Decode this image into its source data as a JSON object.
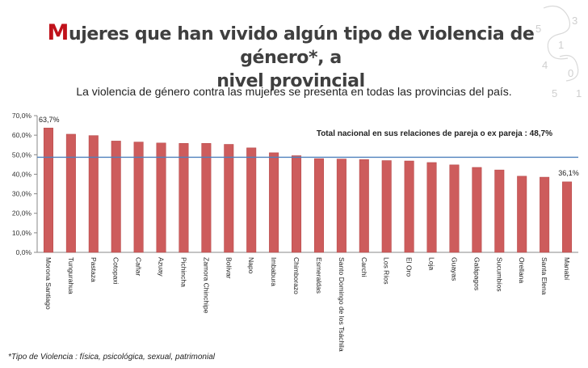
{
  "header": {
    "title_first_letter": "M",
    "title_line1_rest": "ujeres que han vivido algún tipo de violencia de género*, a",
    "title_line2": "nivel provincial",
    "subtitle": "La violencia de género contra las mujeres se presenta en todas las provincias del país."
  },
  "footnote": "*Tipo de Violencia :  física, psicológica, sexual, patrimonial",
  "colors": {
    "bar": "#cd5c5c",
    "bar_stroke": "#b44444",
    "reference_line": "#4f81bd",
    "title_accent": "#c0111a"
  },
  "chart_data": {
    "type": "bar",
    "categories": [
      "Morona Santiago",
      "Tungurahua",
      "Pastaza",
      "Cotopaxi",
      "Cañar",
      "Azuay",
      "Pichincha",
      "Zamora Chinchipe",
      "Bolívar",
      "Napo",
      "Imbabura",
      "Chimborazo",
      "Esmeraldas",
      "Santo Domingo de los Tsáchilas",
      "Carchi",
      "Los Ríos",
      "El Oro",
      "Loja",
      "Guayas",
      "Galápagos",
      "Sucumbíos",
      "Orellana",
      "Santa Elena",
      "Manabí"
    ],
    "values": [
      63.7,
      60.5,
      59.8,
      57.0,
      56.5,
      56.0,
      55.8,
      55.8,
      55.3,
      53.5,
      51.0,
      49.5,
      48.0,
      47.8,
      47.5,
      47.0,
      46.8,
      46.0,
      44.8,
      43.5,
      42.2,
      39.0,
      38.5,
      36.1
    ],
    "data_labels": {
      "0": "63,7%",
      "23": "36,1%"
    },
    "yticks": [
      "0,0%",
      "10,0%",
      "20,0%",
      "30,0%",
      "40,0%",
      "50,0%",
      "60,0%",
      "70,0%"
    ],
    "ylim": [
      0,
      70
    ],
    "reference": {
      "value": 48.7,
      "label": "Total nacional en sus relaciones de pareja o ex pareja : 48,7%"
    },
    "grid": false,
    "legend": "none",
    "xlabel": "",
    "ylabel": ""
  }
}
